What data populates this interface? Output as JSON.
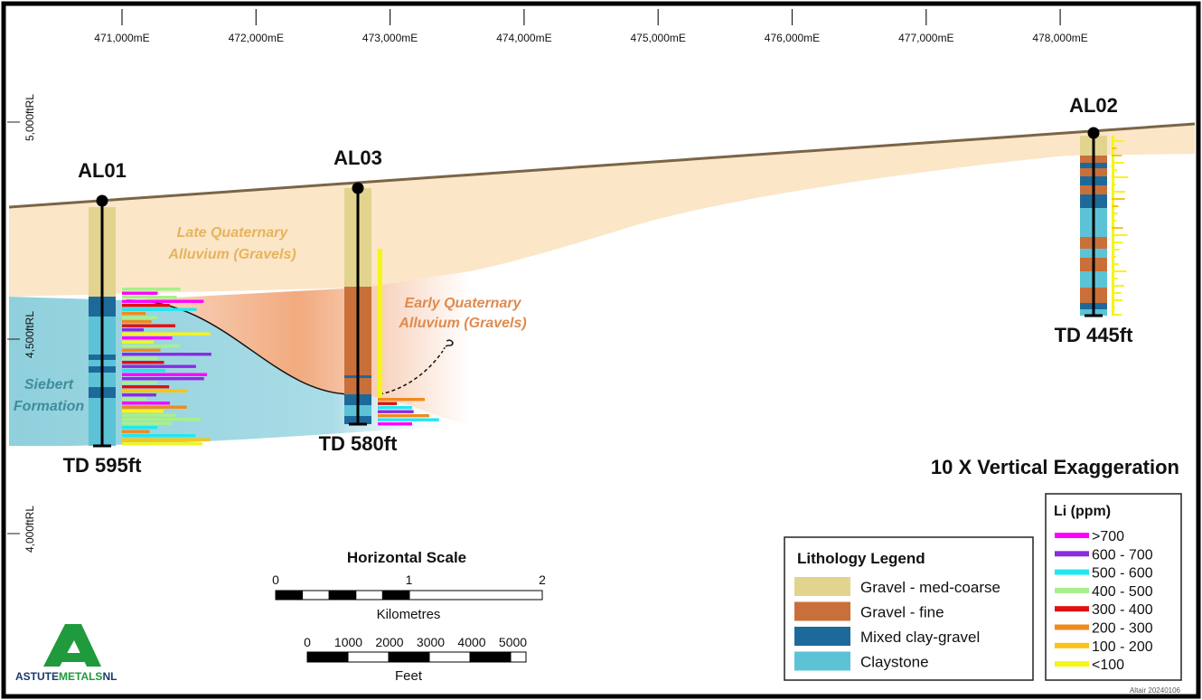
{
  "axes": {
    "eastings": [
      "471,000mE",
      "472,000mE",
      "473,000mE",
      "474,000mE",
      "475,000mE",
      "476,000mE",
      "477,000mE",
      "478,000mE"
    ],
    "elevations": [
      "5,000ftRL",
      "4,500ftRL",
      "4,000ftRL"
    ]
  },
  "drillholes": [
    {
      "name": "AL01",
      "depth": "TD 595ft"
    },
    {
      "name": "AL03",
      "depth": "TD 580ft"
    },
    {
      "name": "AL02",
      "depth": "TD 445ft"
    }
  ],
  "units": {
    "late_quaternary": [
      "Late Quaternary",
      "Alluvium (Gravels)"
    ],
    "early_quaternary": [
      "Early Quaternary",
      "Alluvium (Gravels)"
    ],
    "siebert": [
      "Siebert",
      "Formation"
    ],
    "query": "?"
  },
  "annotation": "10 X Vertical Exaggeration",
  "lithology_legend": {
    "title": "Lithology Legend",
    "items": [
      {
        "label": "Gravel - med-coarse",
        "color": "#e2d48e"
      },
      {
        "label": "Gravel - fine",
        "color": "#c9703a"
      },
      {
        "label": "Mixed clay-gravel",
        "color": "#1d6a9a"
      },
      {
        "label": "Claystone",
        "color": "#5cc3d6"
      }
    ]
  },
  "li_legend": {
    "title": "Li (ppm)",
    "items": [
      {
        "label": ">700",
        "color": "#ff00ff"
      },
      {
        "label": "600 - 700",
        "color": "#8a2be2"
      },
      {
        "label": "500 - 600",
        "color": "#22e6f0"
      },
      {
        "label": "400 - 500",
        "color": "#a8f08c"
      },
      {
        "label": "300 - 400",
        "color": "#e01010"
      },
      {
        "label": "200 - 300",
        "color": "#f08a1c"
      },
      {
        "label": "100 - 200",
        "color": "#f5c518"
      },
      {
        "label": "<100",
        "color": "#f5f51a"
      }
    ]
  },
  "horizontal_scale": {
    "title": "Horizontal Scale",
    "km_labels": [
      "0",
      "1",
      "2"
    ],
    "km_unit": "Kilometres",
    "ft_labels": [
      "0",
      "1000",
      "2000",
      "3000",
      "4000",
      "5000"
    ],
    "ft_unit": "Feet"
  },
  "logo": {
    "parts": [
      "ASTUTE",
      "METALS",
      "NL"
    ]
  },
  "credit": "Altair 20240106"
}
